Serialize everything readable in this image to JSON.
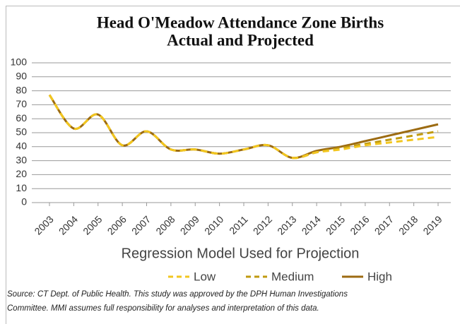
{
  "chart_data": {
    "type": "line",
    "title": [
      "Head O'Meadow Attendance Zone Births",
      "Actual and Projected"
    ],
    "x_label": "Regression Model Used for Projection",
    "source": [
      "Source: CT Dept. of Public Health. This study was approved by the DPH Human Investigations",
      "Committee. MMI assumes full responsibility for analyses and interpretation of this data."
    ],
    "categories": [
      "2003",
      "2004",
      "2005",
      "2006",
      "2007",
      "2008",
      "2009",
      "2010",
      "2011",
      "2012",
      "2013",
      "2014",
      "2015",
      "2016",
      "2017",
      "2018",
      "2019"
    ],
    "series": [
      {
        "name": "Low",
        "color": "#f2c61f",
        "dash": true,
        "values": [
          77,
          53,
          63,
          41,
          51,
          38,
          38,
          35,
          38,
          41,
          32,
          36,
          38,
          41,
          43,
          45,
          47
        ]
      },
      {
        "name": "Medium",
        "color": "#c09a10",
        "dash": true,
        "values": [
          77,
          53,
          63,
          41,
          51,
          38,
          38,
          35,
          38,
          41,
          32,
          36,
          39,
          42,
          45,
          48,
          51
        ]
      },
      {
        "name": "High",
        "color": "#9c6b12",
        "dash": false,
        "values": [
          77,
          53,
          63,
          41,
          51,
          38,
          38,
          35,
          38,
          41,
          32,
          37,
          40,
          44,
          48,
          52,
          56
        ]
      }
    ],
    "ylim": [
      0,
      100
    ],
    "yticks": [
      0,
      10,
      20,
      30,
      40,
      50,
      60,
      70,
      80,
      90,
      100
    ],
    "grid": true
  }
}
